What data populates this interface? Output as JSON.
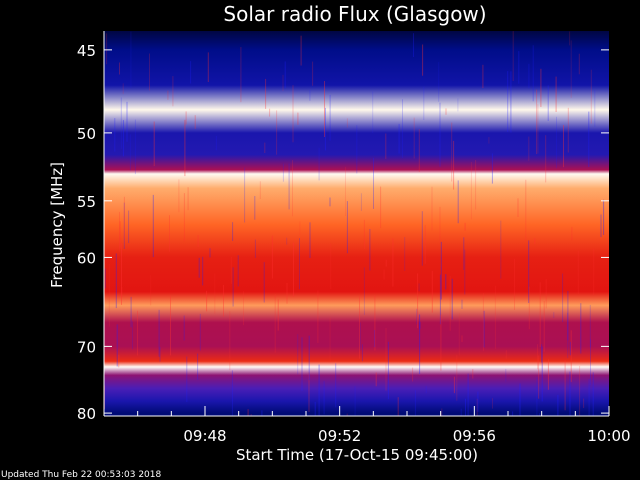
{
  "chart_data": {
    "type": "heatmap",
    "title": "Solar radio Flux (Glasgow)",
    "xlabel": "Start Time (17-Oct-15 09:45:00)",
    "ylabel": "Frequency [MHz]",
    "x_range_minutes": [
      0,
      15
    ],
    "x_ticks": [
      {
        "label": "09:48",
        "minute": 3
      },
      {
        "label": "09:52",
        "minute": 7
      },
      {
        "label": "09:56",
        "minute": 11
      },
      {
        "label": "10:00",
        "minute": 15
      }
    ],
    "ylim": [
      44,
      80.5
    ],
    "y_inverted": true,
    "y_ticks": [
      45,
      50,
      55,
      60,
      70,
      80
    ],
    "y_scale": "reciprocal",
    "intensity_profile_mhz": [
      {
        "f": 44.0,
        "level": 0.05
      },
      {
        "f": 45.0,
        "level": 0.12
      },
      {
        "f": 47.0,
        "level": 0.18
      },
      {
        "f": 48.5,
        "level": 0.97
      },
      {
        "f": 50.0,
        "level": 0.2
      },
      {
        "f": 51.5,
        "level": 0.22
      },
      {
        "f": 52.6,
        "level": 0.45
      },
      {
        "f": 52.9,
        "level": 0.98
      },
      {
        "f": 54.0,
        "level": 0.8
      },
      {
        "f": 57.0,
        "level": 0.72
      },
      {
        "f": 60.0,
        "level": 0.6
      },
      {
        "f": 63.5,
        "level": 0.58
      },
      {
        "f": 65.0,
        "level": 0.78
      },
      {
        "f": 67.0,
        "level": 0.46
      },
      {
        "f": 70.0,
        "level": 0.45
      },
      {
        "f": 72.0,
        "level": 0.62
      },
      {
        "f": 72.8,
        "level": 0.99
      },
      {
        "f": 74.0,
        "level": 0.4
      },
      {
        "f": 76.0,
        "level": 0.3
      },
      {
        "f": 78.0,
        "level": 0.2
      },
      {
        "f": 80.0,
        "level": 0.1
      }
    ],
    "colormap": [
      "#000010",
      "#0010a0",
      "#4020c0",
      "#a01060",
      "#e01010",
      "#ff6020",
      "#ffe0a0",
      "#ffffff"
    ]
  },
  "footer": {
    "updated": "Updated Thu Feb 22 00:53:03 2018"
  }
}
